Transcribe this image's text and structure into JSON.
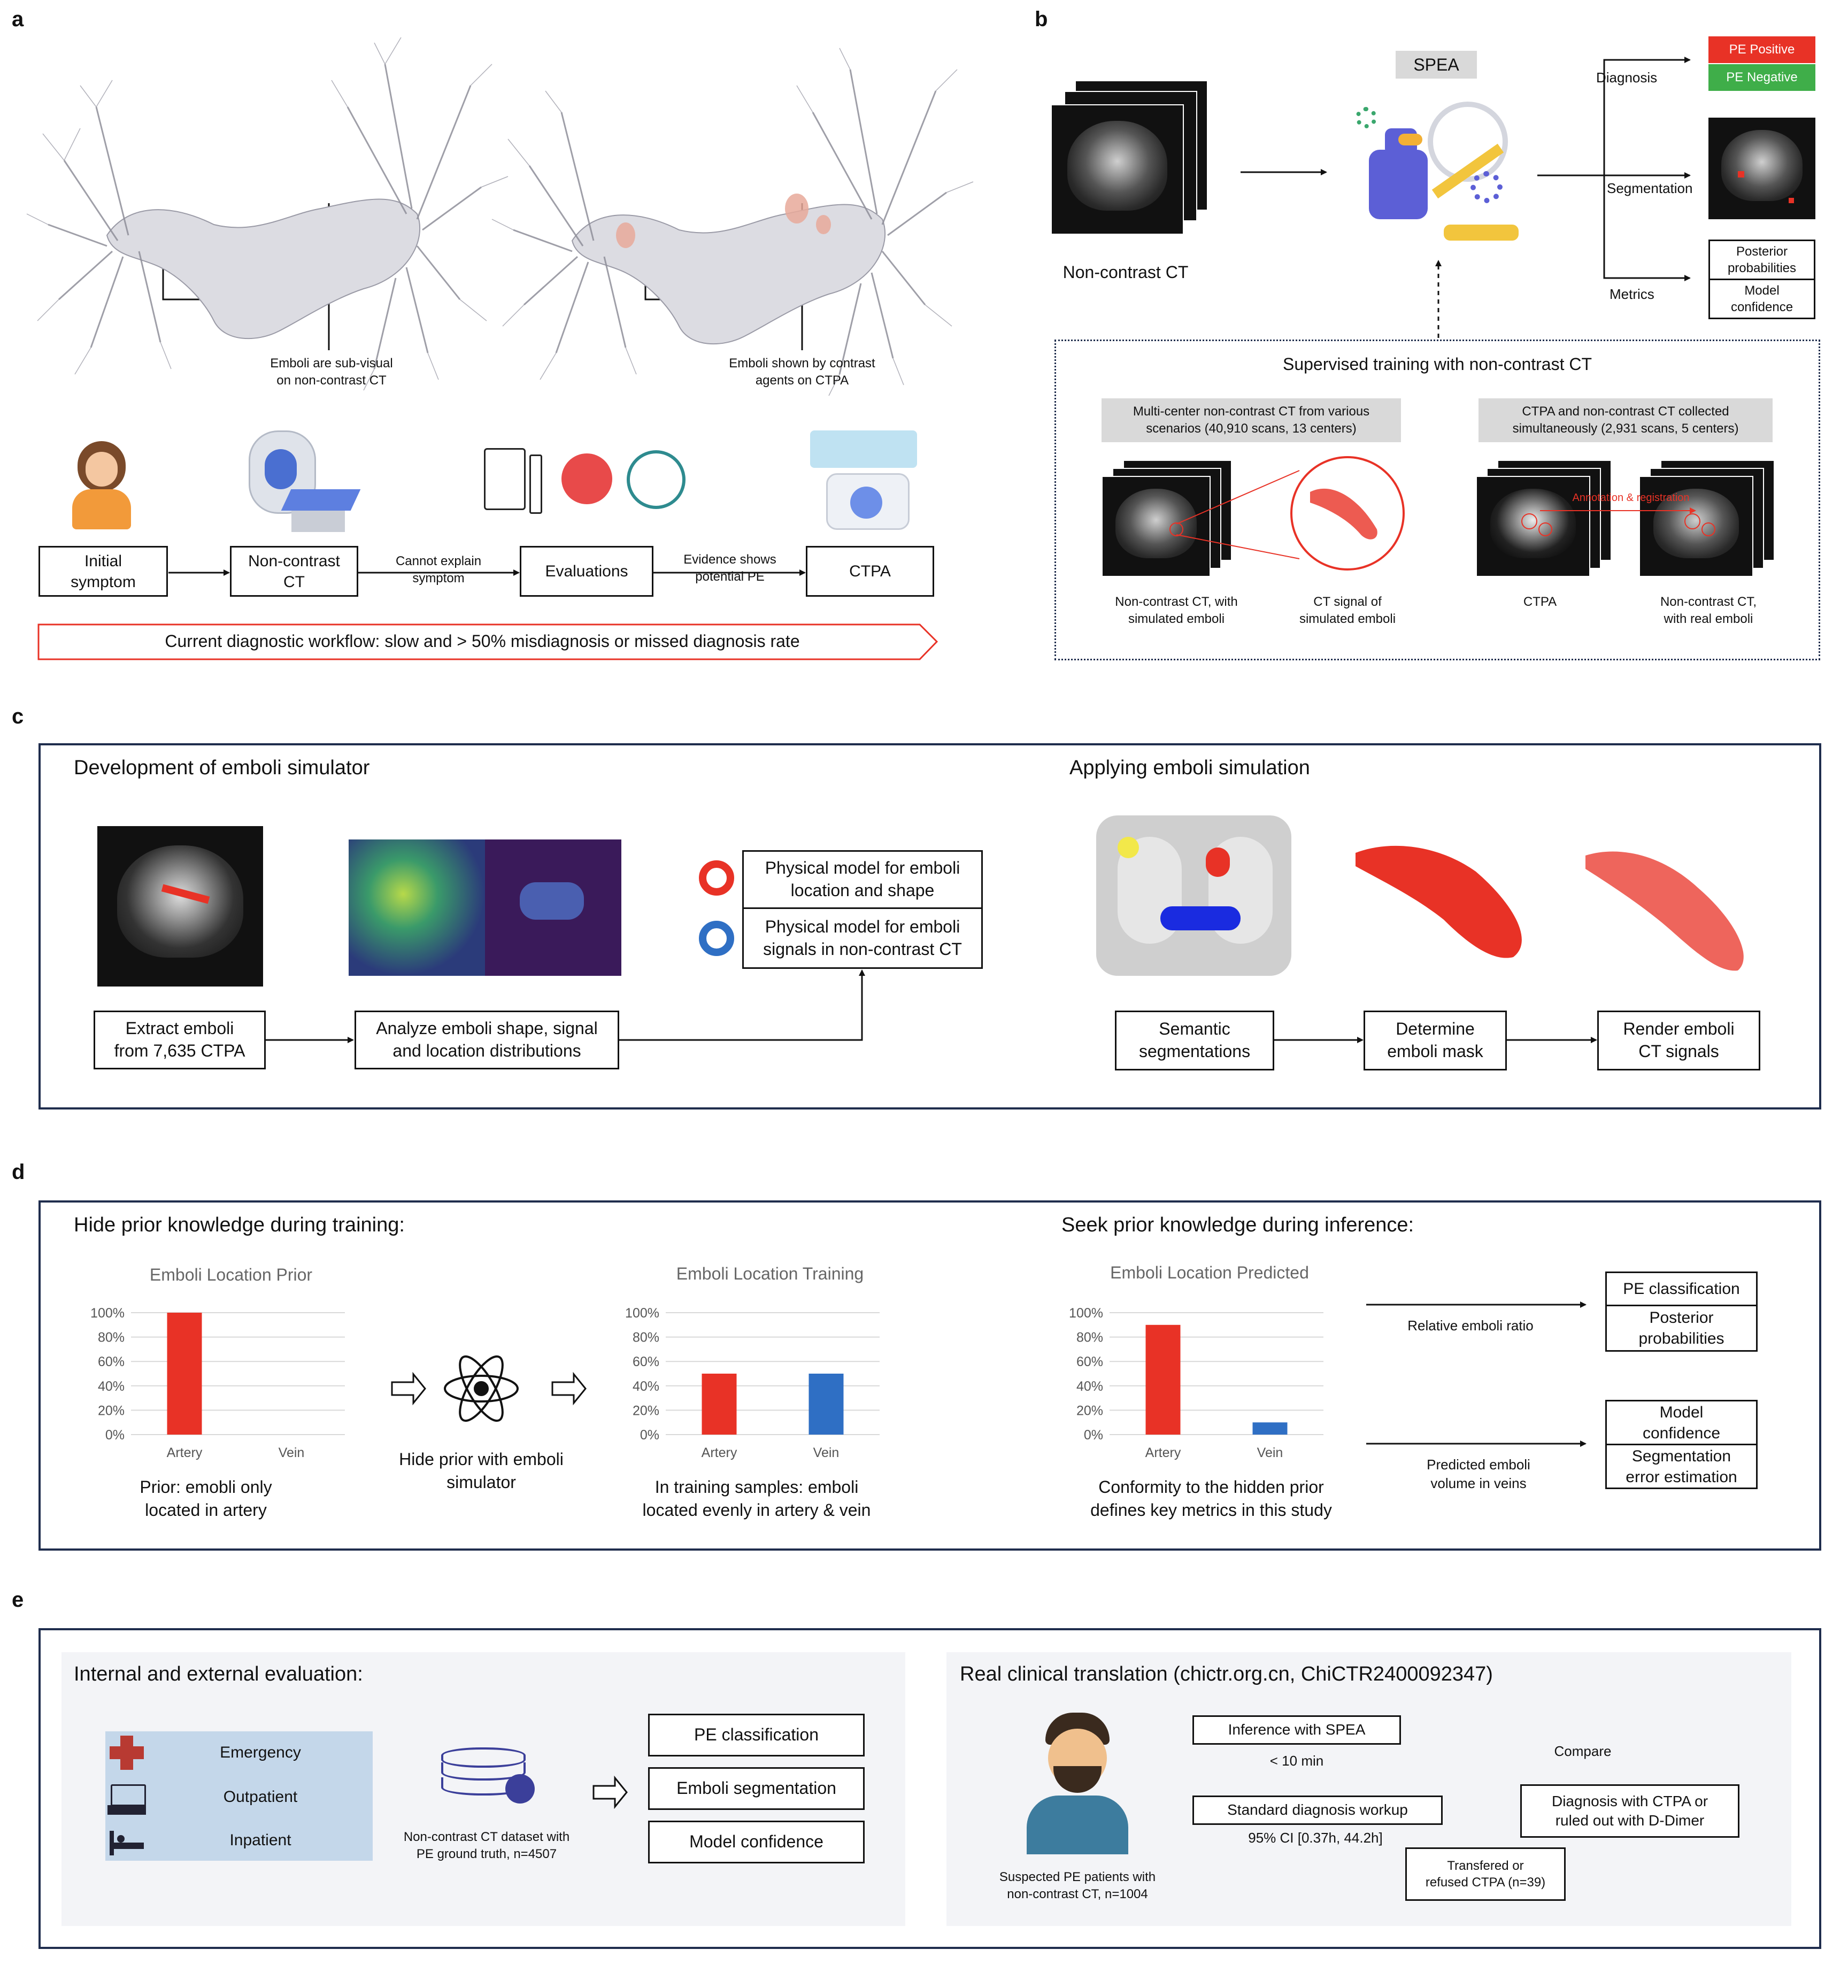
{
  "panel_a": {
    "label": "a",
    "caption_left": "Emboli are sub-visual\non non-contrast CT",
    "caption_right": "Emboli shown by contrast\nagents on CTPA",
    "steps": [
      "Initial\nsymptom",
      "Non-contrast\nCT",
      "Evaluations",
      "CTPA"
    ],
    "arrow_text_1": "Cannot explain\nsymptom",
    "arrow_text_2": "Evidence shows\npotential PE",
    "banner": "Current diagnostic workflow: slow and > 50% misdiagnosis or missed diagnosis rate"
  },
  "panel_b": {
    "label": "b",
    "spea": "SPEA",
    "input_caption": "Non-contrast CT",
    "branch_diagnosis": "Diagnosis",
    "branch_segmentation": "Segmentation",
    "branch_metrics": "Metrics",
    "pe_positive": "PE Positive",
    "pe_negative": "PE Negative",
    "metric_1": "Posterior\nprobabilities",
    "metric_2": "Model\nconfidence",
    "training_title": "Supervised training with non-contrast CT",
    "source_1": "Multi-center non-contrast CT from various\nscenarios (40,910 scans, 13 centers)",
    "source_2": "CTPA and non-contrast CT collected\nsimultaneously (2,931 scans, 5 centers)",
    "cap_sim_ct": "Non-contrast CT, with\nsimulated emboli",
    "cap_sim_signal": "CT signal of\nsimulated emboli",
    "cap_ctpa": "CTPA",
    "cap_real": "Non-contrast CT,\nwith real emboli",
    "annotation": "Annotation & registration",
    "colors": {
      "positive": "#e83226",
      "negative": "#3fae49"
    }
  },
  "panel_c": {
    "label": "c",
    "title_left": "Development of emboli simulator",
    "title_right": "Applying emboli simulation",
    "extract": "Extract emboli\nfrom 7,635 CTPA",
    "analyze": "Analyze emboli shape, signal\nand location distributions",
    "model_1": "Physical model for emboli\nlocation and shape",
    "model_2": "Physical model for emboli\nsignals in non-contrast CT",
    "semantic": "Semantic\nsegmentations",
    "determine": "Determine\nemboli mask",
    "render": "Render emboli\nCT signals"
  },
  "panel_d": {
    "label": "d",
    "title_left": "Hide prior knowledge during training:",
    "title_right": "Seek prior knowledge during inference:",
    "middle_caption": "Hide prior with emboli\nsimulator",
    "caption_prior": "Prior: emobli only\nlocated in artery",
    "caption_training": "In training samples: emboli\nlocated evenly in artery & vein",
    "caption_predicted": "Conformity to the hidden prior\ndefines key metrics in this study",
    "ratio_label": "Relative emboli ratio",
    "volume_label": "Predicted emboli\nvolume in veins",
    "out_1a": "PE classification",
    "out_1b": "Posterior\nprobabilities",
    "out_2a": "Model\nconfidence",
    "out_2b": "Segmentation\nerror estimation"
  },
  "panel_e": {
    "label": "e",
    "title_left": "Internal and external evaluation:",
    "title_right": "Real clinical translation (chictr.org.cn, ChiCTR2400092347)",
    "scenarios": [
      "Emergency",
      "Outpatient",
      "Inpatient"
    ],
    "dataset": "Non-contrast CT dataset with\nPE ground truth, n=4507",
    "outputs": [
      "PE classification",
      "Emboli segmentation",
      "Model confidence"
    ],
    "patients": "Suspected PE patients with\nnon-contrast CT, n=1004",
    "inference": "Inference with SPEA",
    "inference_time": "< 10 min",
    "standard": "Standard diagnosis workup",
    "standard_time": "95% CI [0.37h, 44.2h]",
    "compare": "Compare",
    "diagnosis": "Diagnosis with CTPA or\nruled out with D-Dimer",
    "transferred": "Transfered or\nrefused CTPA (n=39)"
  },
  "chart_data": [
    {
      "type": "bar",
      "title": "Emboli Location Prior",
      "categories": [
        "Artery",
        "Vein"
      ],
      "values": [
        100,
        0
      ],
      "ylim": [
        0,
        100
      ],
      "yticks": [
        "0%",
        "20%",
        "40%",
        "60%",
        "80%",
        "100%"
      ],
      "colors": [
        "#e83226",
        "#2f6fc4"
      ]
    },
    {
      "type": "bar",
      "title": "Emboli Location Training",
      "categories": [
        "Artery",
        "Vein"
      ],
      "values": [
        50,
        50
      ],
      "ylim": [
        0,
        100
      ],
      "yticks": [
        "0%",
        "20%",
        "40%",
        "60%",
        "80%",
        "100%"
      ],
      "colors": [
        "#e83226",
        "#2f6fc4"
      ]
    },
    {
      "type": "bar",
      "title": "Emboli Location Predicted",
      "categories": [
        "Artery",
        "Vein"
      ],
      "values": [
        90,
        10
      ],
      "ylim": [
        0,
        100
      ],
      "yticks": [
        "0%",
        "20%",
        "40%",
        "60%",
        "80%",
        "100%"
      ],
      "colors": [
        "#e83226",
        "#2f6fc4"
      ]
    }
  ]
}
